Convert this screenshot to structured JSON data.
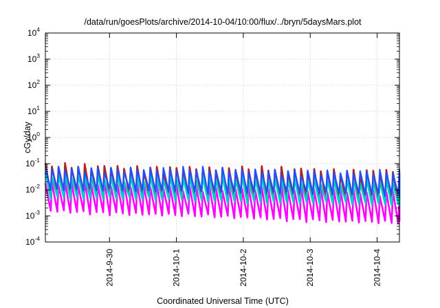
{
  "chart_data": {
    "type": "line",
    "title": "/data/run/goesPlots/archive/2014-10-04/10:00/flux/../bryn/5daysMars.plot",
    "xlabel": "Coordinated Universal Time (UTC)",
    "ylabel": "cGy/day",
    "y_scale": "log",
    "ylim": [
      0.0001,
      10000
    ],
    "y_ticks": [
      {
        "base": "10",
        "exp": "-4",
        "value": 0.0001
      },
      {
        "base": "10",
        "exp": "-3",
        "value": 0.001
      },
      {
        "base": "10",
        "exp": "-2",
        "value": 0.01
      },
      {
        "base": "10",
        "exp": "-1",
        "value": 0.1
      },
      {
        "base": "10",
        "exp": "0",
        "value": 1
      },
      {
        "base": "10",
        "exp": "1",
        "value": 10
      },
      {
        "base": "10",
        "exp": "2",
        "value": 100
      },
      {
        "base": "10",
        "exp": "3",
        "value": 1000
      },
      {
        "base": "10",
        "exp": "4",
        "value": 10000
      }
    ],
    "xlim": [
      "2014-09-29 01:00",
      "2014-10-04 08:00"
    ],
    "x_ticks": [
      "2014-9-30",
      "2014-10-1",
      "2014-10-2",
      "2014-10-3",
      "2014-10-4"
    ],
    "grid": true,
    "legend": "none",
    "cycles": 54,
    "series": [
      {
        "color": "#ff00ff",
        "peak_values": [
          0.018,
          0.008
        ],
        "trough_values": [
          0.0012,
          0.0004
        ]
      },
      {
        "color": "#b22222",
        "peak_values": [
          0.08,
          0.05
        ],
        "trough_values": [
          0.006,
          0.0025
        ]
      },
      {
        "color": "#00cccc",
        "peak_values": [
          0.035,
          0.022
        ],
        "trough_values": [
          0.004,
          0.002
        ]
      },
      {
        "color": "#2050ff",
        "peak_values": [
          0.07,
          0.045
        ],
        "trough_values": [
          0.008,
          0.005
        ]
      }
    ]
  }
}
